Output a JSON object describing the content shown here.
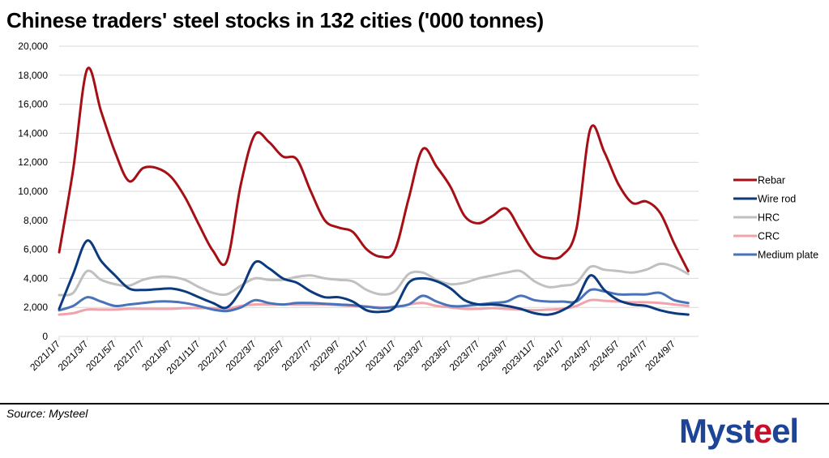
{
  "title": "Chinese traders' steel stocks in 132 cities ('000 tonnes)",
  "source": "Source: Mysteel",
  "logo": {
    "part1": "Myst",
    "accent": "e",
    "part2": "el"
  },
  "chart_data": {
    "type": "line",
    "title": "Chinese traders' steel stocks in 132 cities ('000 tonnes)",
    "xlabel": "",
    "ylabel": "",
    "ylim": [
      0,
      20000
    ],
    "yticks": [
      0,
      2000,
      4000,
      6000,
      8000,
      10000,
      12000,
      14000,
      16000,
      18000,
      20000
    ],
    "ytick_labels": [
      "0",
      "2,000",
      "4,000",
      "6,000",
      "8,000",
      "10,000",
      "12,000",
      "14,000",
      "16,000",
      "18,000",
      "20,000"
    ],
    "xtick_labels": [
      "2021/1/7",
      "2021/3/7",
      "2021/5/7",
      "2021/7/7",
      "2021/9/7",
      "2021/11/7",
      "2022/1/7",
      "2022/3/7",
      "2022/5/7",
      "2022/7/7",
      "2022/9/7",
      "2022/11/7",
      "2023/1/7",
      "2023/3/7",
      "2023/5/7",
      "2023/7/7",
      "2023/9/7",
      "2023/11/7",
      "2024/1/7",
      "2024/3/7",
      "2024/5/7",
      "2024/7/7",
      "2024/9/7"
    ],
    "grid": true,
    "legend_position": "right",
    "x": [
      "2021-01",
      "2021-02",
      "2021-03",
      "2021-04",
      "2021-05",
      "2021-06",
      "2021-07",
      "2021-08",
      "2021-09",
      "2021-10",
      "2021-11",
      "2021-12",
      "2022-01",
      "2022-02",
      "2022-03",
      "2022-04",
      "2022-05",
      "2022-06",
      "2022-07",
      "2022-08",
      "2022-09",
      "2022-10",
      "2022-11",
      "2022-12",
      "2023-01",
      "2023-02",
      "2023-03",
      "2023-04",
      "2023-05",
      "2023-06",
      "2023-07",
      "2023-08",
      "2023-09",
      "2023-10",
      "2023-11",
      "2023-12",
      "2024-01",
      "2024-02",
      "2024-03",
      "2024-04",
      "2024-05",
      "2024-06",
      "2024-07",
      "2024-08",
      "2024-09",
      "2024-10"
    ],
    "series": [
      {
        "name": "Rebar",
        "color": "#a50f15",
        "values": [
          5800,
          11500,
          18400,
          15500,
          12700,
          10700,
          11600,
          11600,
          11000,
          9600,
          7700,
          5900,
          5200,
          10500,
          13900,
          13400,
          12400,
          12200,
          10000,
          8000,
          7500,
          7200,
          6000,
          5500,
          5900,
          9500,
          12900,
          11700,
          10300,
          8300,
          7800,
          8300,
          8800,
          7300,
          5800,
          5400,
          5600,
          7400,
          14300,
          12700,
          10500,
          9200,
          9300,
          8500,
          6400,
          4500
        ]
      },
      {
        "name": "Wire rod",
        "color": "#0b3a7e",
        "values": [
          1900,
          4300,
          6600,
          5200,
          4200,
          3300,
          3200,
          3250,
          3300,
          3100,
          2700,
          2300,
          2000,
          3200,
          5100,
          4700,
          4000,
          3700,
          3100,
          2700,
          2700,
          2400,
          1800,
          1700,
          2000,
          3700,
          4000,
          3800,
          3300,
          2500,
          2200,
          2200,
          2100,
          1900,
          1600,
          1500,
          1800,
          2500,
          4200,
          3200,
          2500,
          2200,
          2100,
          1800,
          1600,
          1500
        ]
      },
      {
        "name": "HRC",
        "color": "#c0c0c0",
        "values": [
          2850,
          3000,
          4500,
          3900,
          3600,
          3500,
          3900,
          4100,
          4100,
          3900,
          3400,
          3000,
          2900,
          3500,
          4000,
          3900,
          3900,
          4100,
          4200,
          4000,
          3900,
          3800,
          3200,
          2900,
          3100,
          4300,
          4400,
          3900,
          3600,
          3700,
          4000,
          4200,
          4400,
          4500,
          3800,
          3400,
          3500,
          3700,
          4800,
          4600,
          4500,
          4400,
          4600,
          5000,
          4800,
          4300
        ]
      },
      {
        "name": "CRC",
        "color": "#f0a3ab",
        "values": [
          1500,
          1600,
          1850,
          1850,
          1850,
          1900,
          1900,
          1900,
          1900,
          1950,
          1950,
          1950,
          1900,
          2100,
          2200,
          2200,
          2200,
          2200,
          2200,
          2200,
          2150,
          2100,
          2050,
          2000,
          2000,
          2200,
          2300,
          2100,
          2000,
          1900,
          1900,
          1950,
          1900,
          1850,
          1800,
          1850,
          1900,
          2100,
          2500,
          2450,
          2400,
          2350,
          2350,
          2300,
          2200,
          2100
        ]
      },
      {
        "name": "Medium plate",
        "color": "#4a72b8",
        "values": [
          1800,
          2100,
          2700,
          2400,
          2100,
          2200,
          2300,
          2400,
          2400,
          2300,
          2100,
          1850,
          1750,
          2000,
          2500,
          2300,
          2200,
          2300,
          2300,
          2250,
          2200,
          2150,
          2050,
          1950,
          2050,
          2200,
          2800,
          2400,
          2100,
          2100,
          2200,
          2300,
          2400,
          2800,
          2500,
          2400,
          2400,
          2400,
          3200,
          3100,
          2900,
          2900,
          2900,
          3000,
          2500,
          2300
        ]
      }
    ]
  }
}
